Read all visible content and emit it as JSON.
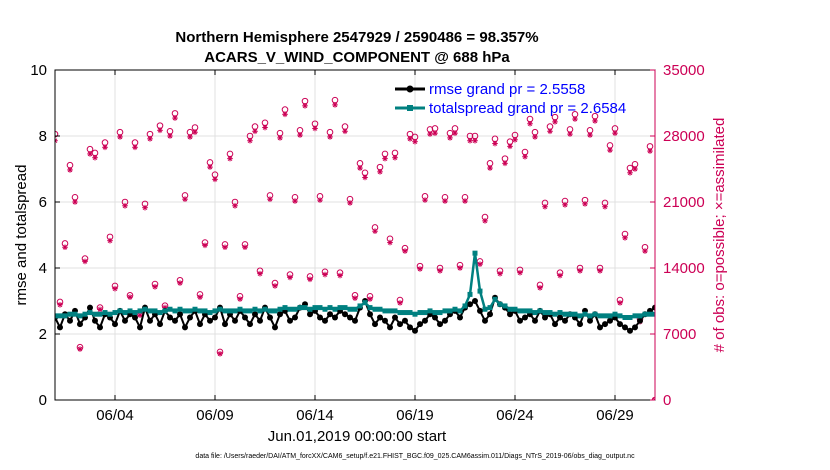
{
  "chart_data": {
    "type": "line",
    "title_line1": "Northern Hemisphere 2547929 / 2590486 = 98.357%",
    "title_line2": "ACARS_V_WIND_COMPONENT @ 688 hPa",
    "xlabel": "Jun.01,2019 00:00:00 start",
    "ylabel_left": "rmse and totalspread",
    "ylabel_right": "# of obs: o=possible; ×=assimilated",
    "footnote": "data file: /Users/raeder/DAI/ATM_forcXX/CAM6_setup/f.e21.FHIST_BGC.f09_025.CAM6assim.011/Diags_NTrS_2019-06/obs_diag_output.nc",
    "xlim": [
      1.0,
      31.0
    ],
    "ylim_left": [
      0,
      10
    ],
    "ylim_right": [
      0,
      35000
    ],
    "xticks": [
      4,
      9,
      14,
      19,
      24,
      29
    ],
    "xtick_labels": [
      "06/04",
      "06/09",
      "06/14",
      "06/19",
      "06/24",
      "06/29"
    ],
    "yticks_left": [
      0,
      2,
      4,
      6,
      8,
      10
    ],
    "ytick_labels_left": [
      "0",
      "2",
      "4",
      "6",
      "8",
      "10"
    ],
    "yticks_right": [
      0,
      7000,
      14000,
      21000,
      28000,
      35000
    ],
    "ytick_labels_right": [
      "0",
      "7000",
      "14000",
      "21000",
      "28000",
      "35000"
    ],
    "legend": [
      {
        "label": "rmse grand pr = 2.5558",
        "color": "#000000"
      },
      {
        "label": "totalspread grand pr = 2.6584",
        "color": "#008080"
      }
    ],
    "colors": {
      "rmse": "#000000",
      "spread": "#008080",
      "obs": "#cc0055",
      "text_blue": "#0000ff"
    },
    "series": [
      {
        "name": "rmse",
        "x": [
          1.0,
          1.25,
          1.5,
          1.75,
          2.0,
          2.25,
          2.5,
          2.75,
          3.0,
          3.25,
          3.5,
          3.75,
          4.0,
          4.25,
          4.5,
          4.75,
          5.0,
          5.25,
          5.5,
          5.75,
          6.0,
          6.25,
          6.5,
          6.75,
          7.0,
          7.25,
          7.5,
          7.75,
          8.0,
          8.25,
          8.5,
          8.75,
          9.0,
          9.25,
          9.5,
          9.75,
          10.0,
          10.25,
          10.5,
          10.75,
          11.0,
          11.25,
          11.5,
          11.75,
          12.0,
          12.25,
          12.5,
          12.75,
          13.0,
          13.25,
          13.5,
          13.75,
          14.0,
          14.25,
          14.5,
          14.75,
          15.0,
          15.25,
          15.5,
          15.75,
          16.0,
          16.25,
          16.5,
          16.75,
          17.0,
          17.25,
          17.5,
          17.75,
          18.0,
          18.25,
          18.5,
          18.75,
          19.0,
          19.25,
          19.5,
          19.75,
          20.0,
          20.25,
          20.5,
          20.75,
          21.0,
          21.25,
          21.5,
          21.75,
          22.0,
          22.25,
          22.5,
          22.75,
          23.0,
          23.25,
          23.5,
          23.75,
          24.0,
          24.25,
          24.5,
          24.75,
          25.0,
          25.25,
          25.5,
          25.75,
          26.0,
          26.25,
          26.5,
          26.75,
          27.0,
          27.25,
          27.5,
          27.75,
          28.0,
          28.25,
          28.5,
          28.75,
          29.0,
          29.25,
          29.5,
          29.75,
          30.0,
          30.25,
          30.5,
          30.75,
          31.0
        ],
        "values": [
          2.5,
          2.2,
          2.6,
          2.4,
          2.7,
          2.3,
          2.5,
          2.8,
          2.4,
          2.2,
          2.6,
          2.5,
          2.3,
          2.7,
          2.4,
          2.6,
          2.5,
          2.2,
          2.8,
          2.4,
          2.6,
          2.3,
          2.7,
          2.5,
          2.4,
          2.6,
          2.2,
          2.5,
          2.7,
          2.3,
          2.6,
          2.4,
          2.5,
          2.8,
          2.3,
          2.6,
          2.4,
          2.7,
          2.5,
          2.3,
          2.6,
          2.4,
          2.8,
          2.5,
          2.2,
          2.6,
          2.7,
          2.4,
          2.5,
          2.8,
          2.9,
          2.6,
          2.7,
          2.5,
          2.4,
          2.6,
          2.5,
          2.7,
          2.6,
          2.5,
          2.4,
          2.8,
          3.0,
          2.6,
          2.3,
          2.5,
          2.4,
          2.2,
          2.5,
          2.3,
          2.4,
          2.2,
          2.1,
          2.3,
          2.4,
          2.6,
          2.5,
          2.3,
          2.4,
          2.6,
          2.7,
          2.5,
          2.8,
          2.9,
          3.0,
          2.7,
          2.4,
          2.6,
          3.1,
          2.9,
          2.8,
          2.6,
          2.7,
          2.4,
          2.5,
          2.6,
          2.4,
          2.7,
          2.5,
          2.6,
          2.3,
          2.5,
          2.4,
          2.6,
          2.5,
          2.3,
          2.7,
          2.4,
          2.6,
          2.2,
          2.3,
          2.4,
          2.5,
          2.3,
          2.2,
          2.1,
          2.2,
          2.4,
          2.6,
          2.7,
          2.8
        ]
      },
      {
        "name": "totalspread",
        "x": [
          1.0,
          1.25,
          1.5,
          1.75,
          2.0,
          2.25,
          2.5,
          2.75,
          3.0,
          3.25,
          3.5,
          3.75,
          4.0,
          4.25,
          4.5,
          4.75,
          5.0,
          5.25,
          5.5,
          5.75,
          6.0,
          6.25,
          6.5,
          6.75,
          7.0,
          7.25,
          7.5,
          7.75,
          8.0,
          8.25,
          8.5,
          8.75,
          9.0,
          9.25,
          9.5,
          9.75,
          10.0,
          10.25,
          10.5,
          10.75,
          11.0,
          11.25,
          11.5,
          11.75,
          12.0,
          12.25,
          12.5,
          12.75,
          13.0,
          13.25,
          13.5,
          13.75,
          14.0,
          14.25,
          14.5,
          14.75,
          15.0,
          15.25,
          15.5,
          15.75,
          16.0,
          16.25,
          16.5,
          16.75,
          17.0,
          17.25,
          17.5,
          17.75,
          18.0,
          18.25,
          18.5,
          18.75,
          19.0,
          19.25,
          19.5,
          19.75,
          20.0,
          20.25,
          20.5,
          20.75,
          21.0,
          21.25,
          21.5,
          21.75,
          22.0,
          22.25,
          22.5,
          22.75,
          23.0,
          23.25,
          23.5,
          23.75,
          24.0,
          24.25,
          24.5,
          24.75,
          25.0,
          25.25,
          25.5,
          25.75,
          26.0,
          26.25,
          26.5,
          26.75,
          27.0,
          27.25,
          27.5,
          27.75,
          28.0,
          28.25,
          28.5,
          28.75,
          29.0,
          29.25,
          29.5,
          29.75,
          30.0,
          30.25,
          30.5,
          30.75,
          31.0
        ],
        "values": [
          2.55,
          2.55,
          2.55,
          2.6,
          2.6,
          2.55,
          2.6,
          2.65,
          2.6,
          2.6,
          2.65,
          2.6,
          2.65,
          2.7,
          2.65,
          2.7,
          2.65,
          2.7,
          2.75,
          2.7,
          2.7,
          2.65,
          2.7,
          2.75,
          2.7,
          2.75,
          2.7,
          2.7,
          2.75,
          2.7,
          2.7,
          2.65,
          2.7,
          2.75,
          2.7,
          2.7,
          2.7,
          2.75,
          2.7,
          2.7,
          2.75,
          2.7,
          2.75,
          2.7,
          2.7,
          2.75,
          2.8,
          2.75,
          2.75,
          2.8,
          2.8,
          2.75,
          2.8,
          2.8,
          2.75,
          2.8,
          2.75,
          2.8,
          2.8,
          2.75,
          2.75,
          2.85,
          2.95,
          2.8,
          2.75,
          2.75,
          2.7,
          2.7,
          2.7,
          2.65,
          2.65,
          2.65,
          2.6,
          2.65,
          2.65,
          2.7,
          2.65,
          2.65,
          2.7,
          2.7,
          2.75,
          2.7,
          2.85,
          3.2,
          4.45,
          3.3,
          2.75,
          2.8,
          3.05,
          2.9,
          2.85,
          2.75,
          2.75,
          2.7,
          2.7,
          2.7,
          2.65,
          2.7,
          2.65,
          2.65,
          2.6,
          2.65,
          2.6,
          2.6,
          2.6,
          2.55,
          2.6,
          2.55,
          2.6,
          2.55,
          2.55,
          2.55,
          2.6,
          2.55,
          2.5,
          2.5,
          2.55,
          2.55,
          2.6,
          2.6,
          2.6
        ]
      }
    ],
    "obs_possible": {
      "x": [
        1.0,
        1.25,
        1.5,
        1.75,
        2.0,
        2.25,
        2.5,
        2.75,
        3.0,
        3.25,
        3.5,
        3.75,
        4.0,
        4.25,
        4.5,
        4.75,
        5.0,
        5.25,
        5.5,
        5.75,
        6.0,
        6.25,
        6.5,
        6.75,
        7.0,
        7.25,
        7.5,
        7.75,
        8.0,
        8.25,
        8.5,
        8.75,
        9.0,
        9.25,
        9.5,
        9.75,
        10.0,
        10.25,
        10.5,
        10.75,
        11.0,
        11.25,
        11.5,
        11.75,
        12.0,
        12.25,
        12.5,
        12.75,
        13.0,
        13.25,
        13.5,
        13.75,
        14.0,
        14.25,
        14.5,
        14.75,
        15.0,
        15.25,
        15.5,
        15.75,
        16.0,
        16.25,
        16.5,
        16.75,
        17.0,
        17.25,
        17.5,
        17.75,
        18.0,
        18.25,
        18.5,
        18.75,
        19.0,
        19.25,
        19.5,
        19.75,
        20.0,
        20.25,
        20.5,
        20.75,
        21.0,
        21.25,
        21.5,
        21.75,
        22.0,
        22.25,
        22.5,
        22.75,
        23.0,
        23.25,
        23.5,
        23.75,
        24.0,
        24.25,
        24.5,
        24.75,
        25.0,
        25.25,
        25.5,
        25.75,
        26.0,
        26.25,
        26.5,
        26.75,
        27.0,
        27.25,
        27.5,
        27.75,
        28.0,
        28.25,
        28.5,
        28.75,
        29.0,
        29.25,
        29.5,
        29.75,
        30.0,
        30.25,
        30.5,
        30.75,
        31.0
      ],
      "values": [
        28200,
        10400,
        16600,
        24900,
        21500,
        5600,
        15000,
        26600,
        26200,
        9800,
        27300,
        17300,
        12100,
        28400,
        21000,
        11100,
        27300,
        9200,
        20800,
        28200,
        12300,
        29100,
        10000,
        28500,
        30400,
        12700,
        21700,
        28400,
        28900,
        11200,
        16700,
        25200,
        23900,
        5100,
        16500,
        26100,
        21000,
        11000,
        16500,
        28000,
        29000,
        13700,
        29400,
        21700,
        12400,
        28300,
        30800,
        13300,
        21500,
        28600,
        31700,
        13100,
        29300,
        21600,
        13600,
        28400,
        31800,
        13500,
        29000,
        21300,
        11100,
        25100,
        24100,
        11000,
        18300,
        24700,
        26100,
        17100,
        26200,
        10600,
        16100,
        28200,
        27900,
        14200,
        21600,
        28700,
        28800,
        14000,
        21500,
        28300,
        28800,
        14300,
        21500,
        28000,
        28000,
        14700,
        19400,
        25100,
        27700,
        13700,
        25600,
        27400,
        28100,
        13800,
        26300,
        29800,
        28400,
        12200,
        20900,
        29000,
        30000,
        13500,
        21100,
        28700,
        30300,
        14000,
        21200,
        28600,
        30100,
        14000,
        20900,
        27000,
        28800,
        10600,
        17600,
        24600,
        25000,
        8600,
        16200,
        26900,
        0
      ]
    },
    "obs_assimilated": {
      "x": [
        1.0,
        1.25,
        1.5,
        1.75,
        2.0,
        2.25,
        2.5,
        2.75,
        3.0,
        3.25,
        3.5,
        3.75,
        4.0,
        4.25,
        4.5,
        4.75,
        5.0,
        5.25,
        5.5,
        5.75,
        6.0,
        6.25,
        6.5,
        6.75,
        7.0,
        7.25,
        7.5,
        7.75,
        8.0,
        8.25,
        8.5,
        8.75,
        9.0,
        9.25,
        9.5,
        9.75,
        10.0,
        10.25,
        10.5,
        10.75,
        11.0,
        11.25,
        11.5,
        11.75,
        12.0,
        12.25,
        12.5,
        12.75,
        13.0,
        13.25,
        13.5,
        13.75,
        14.0,
        14.25,
        14.5,
        14.75,
        15.0,
        15.25,
        15.5,
        15.75,
        16.0,
        16.25,
        16.5,
        16.75,
        17.0,
        17.25,
        17.5,
        17.75,
        18.0,
        18.25,
        18.5,
        18.75,
        19.0,
        19.25,
        19.5,
        19.75,
        20.0,
        20.25,
        20.5,
        20.75,
        21.0,
        21.25,
        21.5,
        21.75,
        22.0,
        22.25,
        22.5,
        22.75,
        23.0,
        23.25,
        23.5,
        23.75,
        24.0,
        24.25,
        24.5,
        24.75,
        25.0,
        25.25,
        25.5,
        25.75,
        26.0,
        26.25,
        26.5,
        26.75,
        27.0,
        27.25,
        27.5,
        27.75,
        28.0,
        28.25,
        28.5,
        28.75,
        29.0,
        29.25,
        29.5,
        29.75,
        30.0,
        30.25,
        30.5,
        30.75,
        31.0
      ],
      "values": [
        27500,
        10100,
        16200,
        24400,
        21000,
        5400,
        14700,
        26100,
        25700,
        9600,
        26800,
        16900,
        11800,
        27900,
        20600,
        10900,
        26800,
        9000,
        20400,
        27700,
        12000,
        28600,
        9800,
        28000,
        29900,
        12400,
        21300,
        27900,
        28400,
        10900,
        16400,
        24700,
        23400,
        4900,
        16200,
        25600,
        20600,
        10700,
        16200,
        27500,
        28500,
        13400,
        28900,
        21300,
        12100,
        27800,
        30300,
        13000,
        21100,
        28100,
        31200,
        12800,
        28800,
        21200,
        13300,
        27900,
        31300,
        13200,
        28500,
        20900,
        10800,
        24600,
        23600,
        10700,
        17900,
        24200,
        25600,
        16700,
        25700,
        10300,
        15800,
        27700,
        27400,
        13900,
        21200,
        28200,
        28300,
        13700,
        21100,
        27800,
        28300,
        14000,
        21100,
        27500,
        27500,
        14400,
        19000,
        24600,
        27200,
        13400,
        25100,
        26900,
        27600,
        13500,
        25800,
        29300,
        27900,
        11900,
        20500,
        28500,
        29500,
        13200,
        20700,
        28200,
        29800,
        13700,
        20800,
        28100,
        29600,
        13700,
        20500,
        26500,
        28300,
        10300,
        17200,
        24100,
        24500,
        8300,
        15800,
        26400,
        0
      ]
    }
  }
}
